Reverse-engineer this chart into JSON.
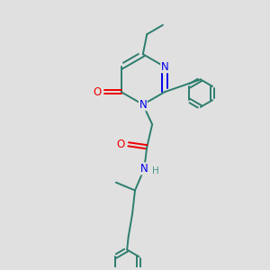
{
  "background_color": "#e0e0e0",
  "bond_color": "#2d7d6e",
  "n_color": "#0000ee",
  "o_color": "#ee0000",
  "h_color": "#4a9a8a",
  "line_width": 1.4,
  "font_size": 8.5,
  "fig_width": 3.0,
  "fig_height": 3.0,
  "dpi": 100,
  "xlim": [
    0,
    10
  ],
  "ylim": [
    0,
    10
  ]
}
